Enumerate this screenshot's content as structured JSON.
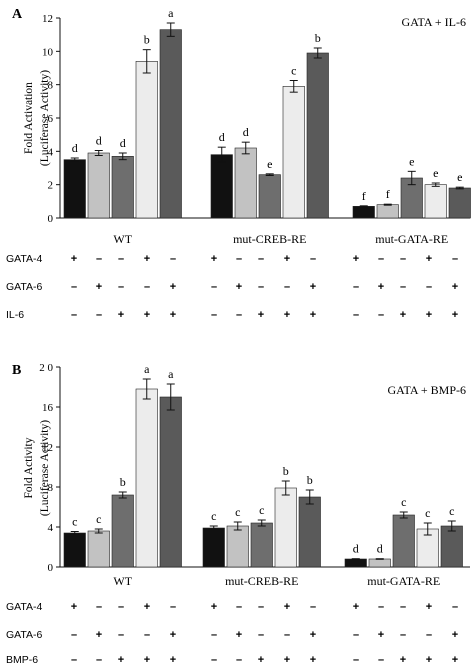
{
  "chart_data": [
    {
      "type": "bar",
      "panel_label": "A",
      "title": "GATA + IL-6",
      "ylabel_lines": [
        "Fold Activation",
        "(Luciferase Activity)"
      ],
      "ylim": [
        0,
        12
      ],
      "yticks": [
        0,
        2,
        4,
        6,
        8,
        10,
        12
      ],
      "groups": [
        "WT",
        "mut-CREB-RE",
        "mut-GATA-RE"
      ],
      "bar_colors": [
        "#111111",
        "#c2c2c2",
        "#6e6e6e",
        "#ececec",
        "#5a5a5a"
      ],
      "values": [
        [
          3.5,
          3.9,
          3.7,
          9.4,
          11.3
        ],
        [
          3.8,
          4.2,
          2.6,
          7.9,
          9.9
        ],
        [
          0.7,
          0.8,
          2.4,
          2.0,
          1.8
        ]
      ],
      "errors": [
        [
          0.1,
          0.15,
          0.2,
          0.7,
          0.4
        ],
        [
          0.45,
          0.35,
          0.05,
          0.35,
          0.3
        ],
        [
          0.03,
          0.03,
          0.4,
          0.1,
          0.05
        ]
      ],
      "letters": [
        [
          "d",
          "d",
          "d",
          "b",
          "a"
        ],
        [
          "d",
          "d",
          "e",
          "c",
          "b"
        ],
        [
          "f",
          "f",
          "e",
          "e",
          "e"
        ]
      ],
      "conditions": [
        {
          "label": "GATA-4",
          "signs": [
            "+",
            "–",
            "–",
            "+",
            "–"
          ]
        },
        {
          "label": "GATA-6",
          "signs": [
            "–",
            "+",
            "–",
            "–",
            "+"
          ]
        },
        {
          "label": "IL-6",
          "signs": [
            "–",
            "–",
            "+",
            "+",
            "+"
          ]
        }
      ]
    },
    {
      "type": "bar",
      "panel_label": "B",
      "title": "GATA + BMP-6",
      "ylabel_lines": [
        "Fold Activity",
        "(Luciferase Activity)"
      ],
      "ylim": [
        0,
        20
      ],
      "yticks": [
        0,
        4,
        8,
        12,
        16,
        20
      ],
      "ytick_labels": [
        "0",
        "4",
        "8",
        "12",
        "16",
        "2 0"
      ],
      "groups": [
        "WT",
        "mut-CREB-RE",
        "mut-GATA-RE"
      ],
      "bar_colors": [
        "#111111",
        "#c2c2c2",
        "#6e6e6e",
        "#ececec",
        "#5a5a5a"
      ],
      "values": [
        [
          3.4,
          3.6,
          7.2,
          17.8,
          17.0
        ],
        [
          3.9,
          4.1,
          4.4,
          7.9,
          7.0
        ],
        [
          0.8,
          0.8,
          5.2,
          3.8,
          4.1
        ]
      ],
      "errors": [
        [
          0.15,
          0.2,
          0.3,
          1.0,
          1.3
        ],
        [
          0.2,
          0.4,
          0.3,
          0.7,
          0.7
        ],
        [
          0.03,
          0.03,
          0.3,
          0.6,
          0.5
        ]
      ],
      "letters": [
        [
          "c",
          "c",
          "b",
          "a",
          "a"
        ],
        [
          "c",
          "c",
          "c",
          "b",
          "b"
        ],
        [
          "d",
          "d",
          "c",
          "c",
          "c"
        ]
      ],
      "conditions": [
        {
          "label": "GATA-4",
          "signs": [
            "+",
            "–",
            "–",
            "+",
            "–"
          ]
        },
        {
          "label": "GATA-6",
          "signs": [
            "–",
            "+",
            "–",
            "–",
            "+"
          ]
        },
        {
          "label": "BMP-6",
          "signs": [
            "–",
            "–",
            "+",
            "+",
            "+"
          ]
        }
      ]
    }
  ]
}
